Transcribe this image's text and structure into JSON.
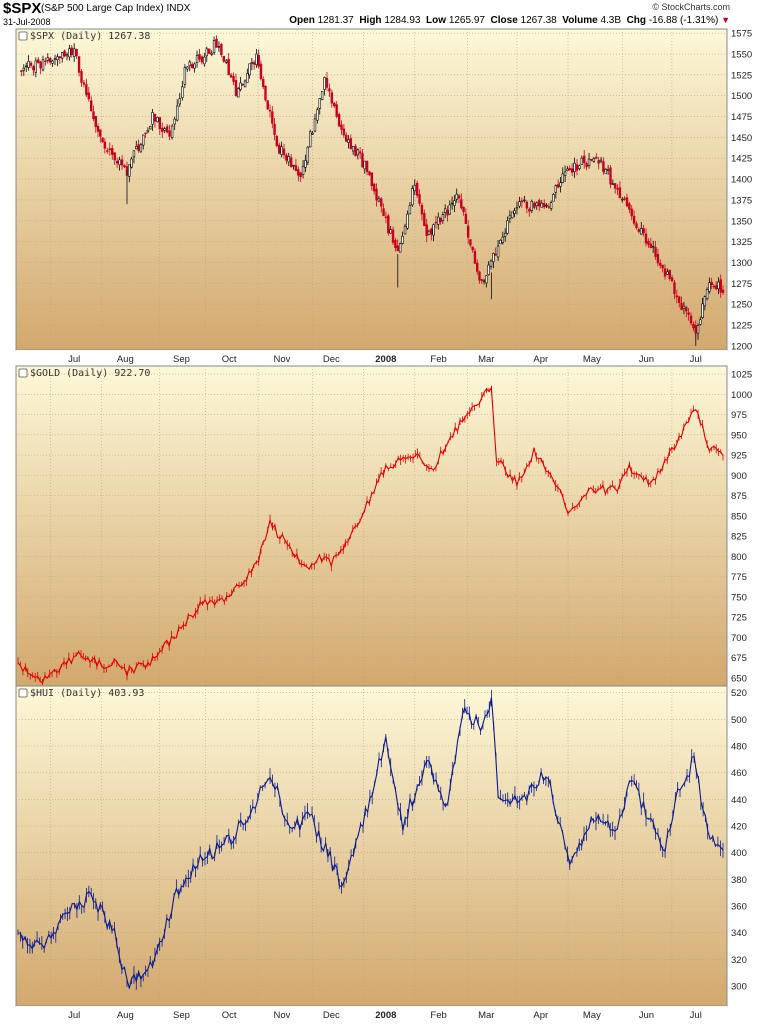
{
  "header": {
    "symbol": "$SPX",
    "description": "(S&P 500 Large Cap Index) INDX",
    "date": "31-Jul-2008",
    "watermark": "© StockCharts.com",
    "open_label": "Open",
    "open": "1281.37",
    "high_label": "High",
    "high": "1284.93",
    "low_label": "Low",
    "low": "1265.97",
    "close_label": "Close",
    "close": "1267.38",
    "volume_label": "Volume",
    "volume": "4.3B",
    "chg_label": "Chg",
    "chg": "-16.88 (-1.31%)"
  },
  "colors": {
    "spx_up": "#000000",
    "spx_down": "#c8001e",
    "gold": "#e00000",
    "hui": "#0a1a8c",
    "panel_top": "#fdf8d8",
    "panel_bottom": "#d2a86e"
  },
  "chart_data": [
    {
      "type": "candlestick",
      "title": "$SPX (Daily) 1267.38",
      "ylim": [
        1195,
        1580
      ],
      "yticks": [
        1200,
        1225,
        1250,
        1275,
        1300,
        1325,
        1350,
        1375,
        1400,
        1425,
        1450,
        1475,
        1500,
        1525,
        1550,
        1575
      ],
      "xlabels": [
        "Jul",
        "Aug",
        "Sep",
        "Oct",
        "Nov",
        "Dec",
        "2008",
        "Feb",
        "Mar",
        "Apr",
        "May",
        "Jun",
        "Jul"
      ],
      "x_range": [
        "2007-06-13",
        "2008-07-31"
      ],
      "grid": true,
      "series": [
        {
          "values": [
            [
              "2007-06-15",
              1532
            ],
            [
              "2007-07-16",
              1552
            ],
            [
              "2007-07-26",
              1482
            ],
            [
              "2007-08-03",
              1433
            ],
            [
              "2007-08-16",
              1411
            ],
            [
              "2007-08-31",
              1474
            ],
            [
              "2007-09-10",
              1451
            ],
            [
              "2007-09-19",
              1529
            ],
            [
              "2007-10-09",
              1565
            ],
            [
              "2007-10-19",
              1501
            ],
            [
              "2007-10-31",
              1549
            ],
            [
              "2007-11-12",
              1439
            ],
            [
              "2007-11-26",
              1407
            ],
            [
              "2007-12-10",
              1515
            ],
            [
              "2007-12-20",
              1461
            ],
            [
              "2008-01-04",
              1411
            ],
            [
              "2008-01-22",
              1310
            ],
            [
              "2008-02-01",
              1395
            ],
            [
              "2008-02-08",
              1331
            ],
            [
              "2008-02-27",
              1380
            ],
            [
              "2008-03-10",
              1273
            ],
            [
              "2008-03-14",
              1288
            ],
            [
              "2008-04-01",
              1370
            ],
            [
              "2008-04-17",
              1365
            ],
            [
              "2008-05-02",
              1413
            ],
            [
              "2008-05-19",
              1426
            ],
            [
              "2008-06-06",
              1360
            ],
            [
              "2008-06-20",
              1317
            ],
            [
              "2008-07-15",
              1215
            ],
            [
              "2008-07-23",
              1282
            ],
            [
              "2008-07-31",
              1267
            ]
          ]
        }
      ]
    },
    {
      "type": "line",
      "title": "$GOLD (Daily) 922.70",
      "ylim": [
        640,
        1035
      ],
      "yticks": [
        650,
        675,
        700,
        725,
        750,
        775,
        800,
        825,
        850,
        875,
        900,
        925,
        950,
        975,
        1000,
        1025
      ],
      "grid": true,
      "series": [
        {
          "values": [
            [
              "2007-06-13",
              665
            ],
            [
              "2007-06-26",
              645
            ],
            [
              "2007-07-10",
              665
            ],
            [
              "2007-07-20",
              680
            ],
            [
              "2007-08-01",
              665
            ],
            [
              "2007-08-10",
              672
            ],
            [
              "2007-08-16",
              658
            ],
            [
              "2007-08-31",
              672
            ],
            [
              "2007-09-14",
              705
            ],
            [
              "2007-09-28",
              740
            ],
            [
              "2007-10-15",
              750
            ],
            [
              "2007-10-31",
              790
            ],
            [
              "2007-11-08",
              840
            ],
            [
              "2007-11-21",
              808
            ],
            [
              "2007-11-28",
              785
            ],
            [
              "2007-12-07",
              800
            ],
            [
              "2007-12-14",
              792
            ],
            [
              "2007-12-28",
              835
            ],
            [
              "2008-01-15",
              910
            ],
            [
              "2008-01-31",
              925
            ],
            [
              "2008-02-12",
              910
            ],
            [
              "2008-02-29",
              970
            ],
            [
              "2008-03-17",
              1010
            ],
            [
              "2008-03-20",
              920
            ],
            [
              "2008-04-01",
              890
            ],
            [
              "2008-04-11",
              930
            ],
            [
              "2008-04-25",
              885
            ],
            [
              "2008-05-01",
              855
            ],
            [
              "2008-05-13",
              880
            ],
            [
              "2008-05-30",
              885
            ],
            [
              "2008-06-06",
              910
            ],
            [
              "2008-06-20",
              890
            ],
            [
              "2008-07-01",
              930
            ],
            [
              "2008-07-15",
              985
            ],
            [
              "2008-07-23",
              935
            ],
            [
              "2008-07-31",
              922.7
            ]
          ]
        }
      ]
    },
    {
      "type": "line",
      "title": "$HUI (Daily) 403.93",
      "ylim": [
        285,
        525
      ],
      "yticks": [
        300,
        320,
        340,
        360,
        380,
        400,
        420,
        440,
        460,
        480,
        500,
        520
      ],
      "xlabels": [
        "Jul",
        "Aug",
        "Sep",
        "Oct",
        "Nov",
        "Dec",
        "2008",
        "Feb",
        "Mar",
        "Apr",
        "May",
        "Jun",
        "Jul"
      ],
      "grid": true,
      "series": [
        {
          "values": [
            [
              "2007-06-13",
              335
            ],
            [
              "2007-06-27",
              330
            ],
            [
              "2007-07-12",
              355
            ],
            [
              "2007-07-26",
              368
            ],
            [
              "2007-08-03",
              350
            ],
            [
              "2007-08-10",
              335
            ],
            [
              "2007-08-16",
              300
            ],
            [
              "2007-08-31",
              318
            ],
            [
              "2007-09-14",
              370
            ],
            [
              "2007-09-28",
              395
            ],
            [
              "2007-10-12",
              405
            ],
            [
              "2007-10-26",
              425
            ],
            [
              "2007-11-08",
              460
            ],
            [
              "2007-11-21",
              415
            ],
            [
              "2007-11-30",
              430
            ],
            [
              "2007-12-12",
              400
            ],
            [
              "2007-12-20",
              375
            ],
            [
              "2008-01-03",
              430
            ],
            [
              "2008-01-15",
              485
            ],
            [
              "2008-01-25",
              420
            ],
            [
              "2008-02-08",
              470
            ],
            [
              "2008-02-19",
              430
            ],
            [
              "2008-02-29",
              505
            ],
            [
              "2008-03-12",
              495
            ],
            [
              "2008-03-17",
              515
            ],
            [
              "2008-03-21",
              440
            ],
            [
              "2008-04-04",
              440
            ],
            [
              "2008-04-18",
              460
            ],
            [
              "2008-05-02",
              395
            ],
            [
              "2008-05-16",
              425
            ],
            [
              "2008-05-30",
              415
            ],
            [
              "2008-06-06",
              455
            ],
            [
              "2008-06-20",
              420
            ],
            [
              "2008-06-27",
              400
            ],
            [
              "2008-07-03",
              440
            ],
            [
              "2008-07-14",
              470
            ],
            [
              "2008-07-22",
              415
            ],
            [
              "2008-07-31",
              403.93
            ]
          ]
        }
      ]
    }
  ]
}
